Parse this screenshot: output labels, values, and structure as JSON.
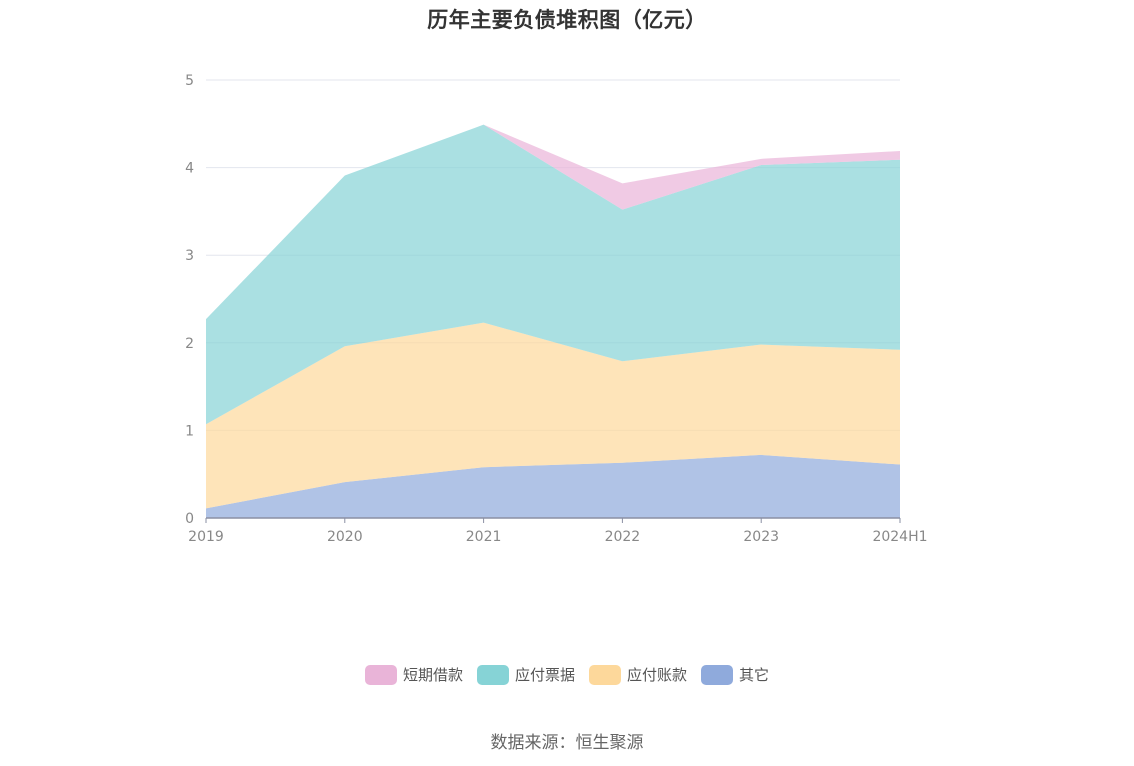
{
  "chart_data": {
    "type": "area",
    "title": "历年主要负债堆积图（亿元）",
    "stacked": true,
    "categories": [
      "2019",
      "2020",
      "2021",
      "2022",
      "2023",
      "2024H1"
    ],
    "ylim": [
      0,
      5
    ],
    "yticks": [
      "0",
      "1",
      "2",
      "3",
      "4",
      "5"
    ],
    "grid": true,
    "legend_position": "bottom",
    "series": [
      {
        "name": "其它",
        "color": "#8faadc",
        "values": [
          0.11,
          0.41,
          0.58,
          0.63,
          0.72,
          0.61
        ]
      },
      {
        "name": "应付账款",
        "color": "#fdd89b",
        "values": [
          0.96,
          1.55,
          1.65,
          1.16,
          1.26,
          1.31
        ]
      },
      {
        "name": "应付票据",
        "color": "#86d3d6",
        "values": [
          1.2,
          1.95,
          2.26,
          1.73,
          2.05,
          2.17
        ]
      },
      {
        "name": "短期借款",
        "color": "#e9b4d8",
        "values": [
          0.0,
          0.0,
          0.0,
          0.3,
          0.07,
          0.1
        ]
      }
    ]
  },
  "legend_order": [
    "短期借款",
    "应付票据",
    "应付账款",
    "其它"
  ],
  "source": "数据来源：恒生聚源"
}
